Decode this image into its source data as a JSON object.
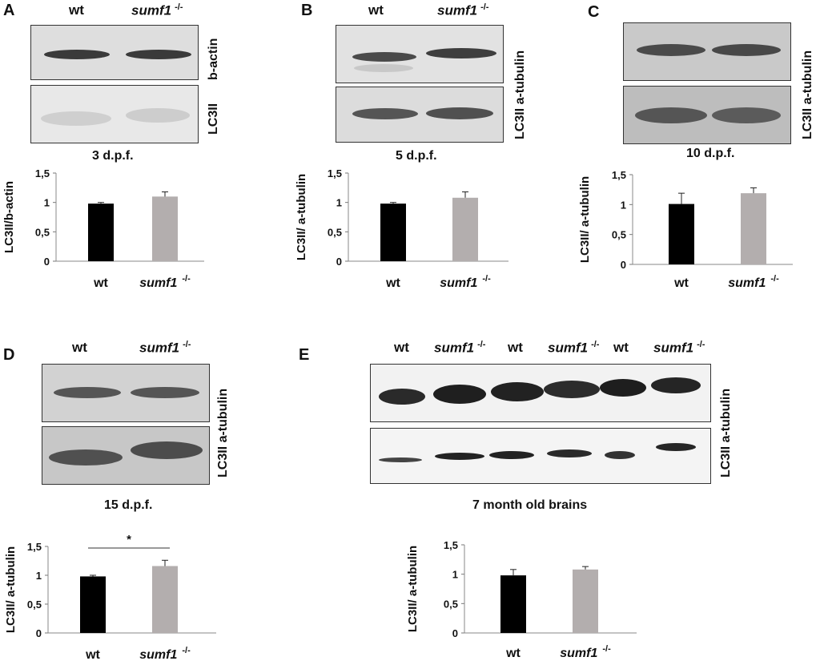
{
  "panels": [
    {
      "letter": "A",
      "lanes": [
        "wt",
        "sumf1",
        "-/-"
      ],
      "blot_labels": [
        "b-actin",
        "LC3II"
      ],
      "caption": "3 d.p.f."
    },
    {
      "letter": "B",
      "lanes": [
        "wt",
        "sumf1",
        "-/-"
      ],
      "blot_labels": [
        "LC3II",
        "a-tubulin"
      ],
      "caption": "5 d.p.f."
    },
    {
      "letter": "C",
      "blot_labels": [
        "LC3II",
        "a-tubulin"
      ],
      "caption": "10 d.p.f."
    },
    {
      "letter": "D",
      "lanes": [
        "wt",
        "sumf1",
        "-/-"
      ],
      "blot_labels": [
        "LC3II",
        "a-tubulin"
      ],
      "caption": "15 d.p.f."
    },
    {
      "letter": "E",
      "lanes": [
        "wt",
        "sumf1",
        "-/-",
        "wt",
        "sumf1",
        "-/-",
        "wt",
        "sumf1",
        "-/-"
      ],
      "blot_labels": [
        "LC3II",
        "a-tubulin"
      ],
      "caption": "7 month old brains"
    }
  ],
  "chart_data": [
    {
      "panel": "A",
      "type": "bar",
      "categories": [
        "wt",
        "sumf1 -/-"
      ],
      "values": [
        0.98,
        1.1
      ],
      "errors": [
        0.02,
        0.08
      ],
      "ylabel": "LC3II/b-actin",
      "ylim": [
        0,
        1.5
      ],
      "yticks": [
        "0",
        "0,5",
        "1",
        "1,5"
      ],
      "colors": [
        "#000000",
        "#b3aeae"
      ]
    },
    {
      "panel": "B",
      "type": "bar",
      "categories": [
        "wt",
        "sumf1 -/-"
      ],
      "values": [
        0.98,
        1.08
      ],
      "errors": [
        0.02,
        0.1
      ],
      "ylabel": "LC3II/ a-tubulin",
      "ylim": [
        0,
        1.5
      ],
      "yticks": [
        "0",
        "0,5",
        "1",
        "1,5"
      ],
      "colors": [
        "#000000",
        "#b3aeae"
      ]
    },
    {
      "panel": "C",
      "type": "bar",
      "categories": [
        "wt",
        "sumf1 -/-"
      ],
      "values": [
        1.01,
        1.19
      ],
      "errors": [
        0.18,
        0.09
      ],
      "ylabel": "LC3II/ a-tubulin",
      "ylim": [
        0,
        1.5
      ],
      "yticks": [
        "0",
        "0,5",
        "1",
        "1,5"
      ],
      "colors": [
        "#000000",
        "#b3aeae"
      ]
    },
    {
      "panel": "D",
      "type": "bar",
      "categories": [
        "wt",
        "sumf1 -/-"
      ],
      "values": [
        0.98,
        1.16
      ],
      "errors": [
        0.02,
        0.1
      ],
      "ylabel": "LC3II/ a-tubulin",
      "ylim": [
        0,
        1.5
      ],
      "yticks": [
        "0",
        "0,5",
        "1",
        "1,5"
      ],
      "significance": "*",
      "colors": [
        "#000000",
        "#b3aeae"
      ]
    },
    {
      "panel": "E",
      "type": "bar",
      "categories": [
        "wt",
        "sumf1 -/-"
      ],
      "values": [
        0.98,
        1.08
      ],
      "errors": [
        0.1,
        0.05
      ],
      "ylabel": "LC3II/ a-tubulin",
      "ylim": [
        0,
        1.5
      ],
      "yticks": [
        "0",
        "0,5",
        "1",
        "1,5"
      ],
      "colors": [
        "#000000",
        "#b3aeae"
      ]
    }
  ]
}
